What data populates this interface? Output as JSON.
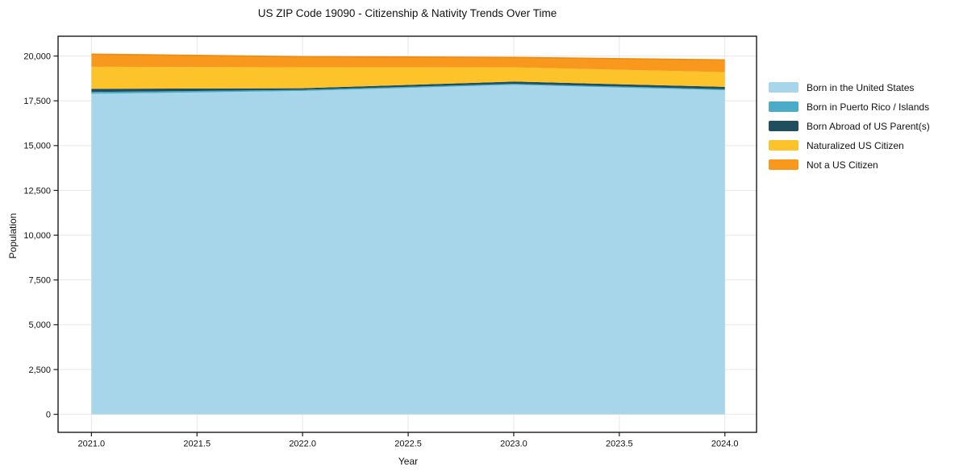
{
  "chart_data": {
    "type": "area",
    "stacked": true,
    "title": "US ZIP Code 19090 - Citizenship & Nativity Trends Over Time",
    "xlabel": "Year",
    "ylabel": "Population",
    "x": [
      2021,
      2022,
      2023,
      2024
    ],
    "series": [
      {
        "name": "Born in the United States",
        "color": "#a7d6ea",
        "values": [
          17890,
          18050,
          18390,
          18090
        ]
      },
      {
        "name": "Born in Puerto Rico / Islands",
        "color": "#4aacc6",
        "values": [
          100,
          60,
          60,
          60
        ]
      },
      {
        "name": "Born Abroad of US Parent(s)",
        "color": "#1f4e5f",
        "values": [
          180,
          90,
          125,
          130
        ]
      },
      {
        "name": "Naturalized US Citizen",
        "color": "#fdc32b",
        "values": [
          1230,
          1170,
          795,
          820
        ]
      },
      {
        "name": "Not a US Citizen",
        "color": "#f8991d",
        "values": [
          700,
          590,
          550,
          680
        ]
      }
    ],
    "totals": [
      20100,
      19960,
      19920,
      19780
    ],
    "xlim": [
      2020.842,
      2024.15
    ],
    "ylim": [
      -1005,
      21105
    ],
    "xticks": [
      2021.0,
      2021.5,
      2022.0,
      2022.5,
      2023.0,
      2023.5,
      2024.0
    ],
    "xtick_labels": [
      "2021.0",
      "2021.5",
      "2022.0",
      "2022.5",
      "2023.0",
      "2023.5",
      "2024.0"
    ],
    "yticks": [
      0,
      2500,
      5000,
      7500,
      10000,
      12500,
      15000,
      17500,
      20000
    ],
    "ytick_labels": [
      "0",
      "2,500",
      "5,000",
      "7,500",
      "10,000",
      "12,500",
      "15,000",
      "17,500",
      "20,000"
    ],
    "grid": true,
    "grid_color": "#e7e7e7",
    "spine_color": "#1a1a1a",
    "total_edge_color": "#ee8d12",
    "legend_position": "right"
  }
}
